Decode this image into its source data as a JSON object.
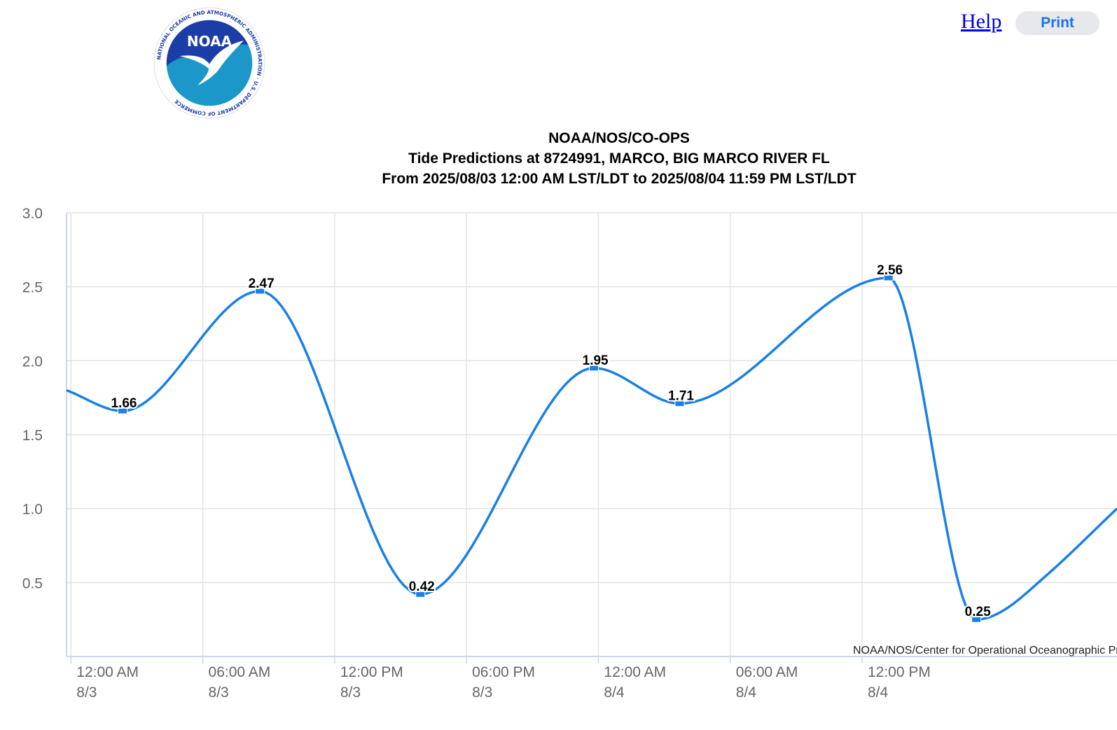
{
  "header": {
    "help_label": "Help",
    "print_label": "Print",
    "logo": {
      "icon": "noaa-logo",
      "center_text": "NOAA",
      "ring_text": "NATIONAL OCEANIC AND ATMOSPHERIC ADMINISTRATION · U.S. DEPARTMENT OF COMMERCE"
    }
  },
  "chart_data": {
    "type": "line",
    "title_lines": [
      "NOAA/NOS/CO-OPS",
      "Tide Predictions at 8724991, MARCO, BIG MARCO RIVER FL",
      "From 2025/08/03 12:00 AM LST/LDT to 2025/08/04 11:59 PM LST/LDT"
    ],
    "credit": "NOAA/NOS/Center for Operational Oceanographic Products and Services",
    "x_unit": "hours since 2025/08/03 12:00 AM",
    "xlim": [
      -0.2,
      47.6
    ],
    "ylim": [
      0,
      3.0
    ],
    "y_ticks": [
      {
        "value": 0.5,
        "label": "0.5"
      },
      {
        "value": 1.0,
        "label": "1.0"
      },
      {
        "value": 1.5,
        "label": "1.5"
      },
      {
        "value": 2.0,
        "label": "2.0"
      },
      {
        "value": 2.5,
        "label": "2.5"
      },
      {
        "value": 3.0,
        "label": "3.0"
      }
    ],
    "x_ticks": [
      {
        "value": 0,
        "time": "12:00 AM",
        "date": "8/3"
      },
      {
        "value": 6,
        "time": "06:00 AM",
        "date": "8/3"
      },
      {
        "value": 12,
        "time": "12:00 PM",
        "date": "8/3"
      },
      {
        "value": 18,
        "time": "06:00 PM",
        "date": "8/3"
      },
      {
        "value": 24,
        "time": "12:00 AM",
        "date": "8/4"
      },
      {
        "value": 30,
        "time": "06:00 AM",
        "date": "8/4"
      },
      {
        "value": 36,
        "time": "12:00 PM",
        "date": "8/4"
      }
    ],
    "series": [
      {
        "name": "Predictions",
        "color": "#1a7fe6",
        "x": [
          -0.2,
          2.35,
          8.6,
          15.9,
          23.8,
          27.7,
          37.2,
          41.2,
          42.3,
          44.4,
          47.6
        ],
        "values": [
          1.8,
          1.66,
          2.47,
          0.42,
          1.95,
          1.71,
          2.56,
          0.25,
          0.3,
          0.55,
          1.0
        ]
      }
    ],
    "extremes": [
      {
        "x": 2.35,
        "value": 1.66,
        "label": "1.66"
      },
      {
        "x": 8.6,
        "value": 2.47,
        "label": "2.47"
      },
      {
        "x": 15.9,
        "value": 0.42,
        "label": "0.42"
      },
      {
        "x": 23.8,
        "value": 1.95,
        "label": "1.95"
      },
      {
        "x": 27.7,
        "value": 1.71,
        "label": "1.71"
      },
      {
        "x": 37.2,
        "value": 2.56,
        "label": "2.56"
      },
      {
        "x": 41.2,
        "value": 0.25,
        "label": "0.25"
      }
    ]
  }
}
